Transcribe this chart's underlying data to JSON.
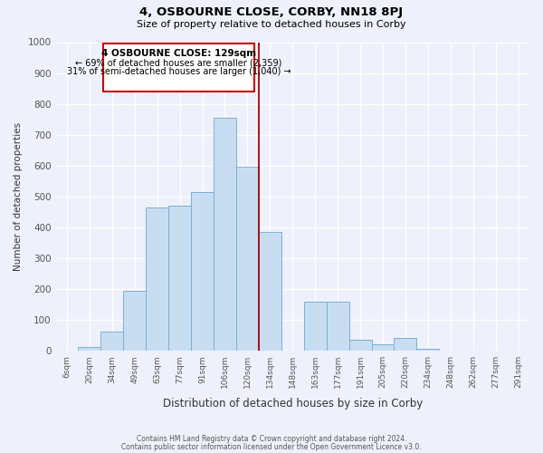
{
  "title_main": "4, OSBOURNE CLOSE, CORBY, NN18 8PJ",
  "title_sub": "Size of property relative to detached houses in Corby",
  "xlabel": "Distribution of detached houses by size in Corby",
  "ylabel": "Number of detached properties",
  "bin_labels": [
    "6sqm",
    "20sqm",
    "34sqm",
    "49sqm",
    "63sqm",
    "77sqm",
    "91sqm",
    "106sqm",
    "120sqm",
    "134sqm",
    "148sqm",
    "163sqm",
    "177sqm",
    "191sqm",
    "205sqm",
    "220sqm",
    "234sqm",
    "248sqm",
    "262sqm",
    "277sqm",
    "291sqm"
  ],
  "bar_values": [
    0,
    12,
    62,
    195,
    465,
    470,
    515,
    755,
    595,
    385,
    0,
    160,
    160,
    35,
    22,
    42,
    5,
    0,
    0,
    0,
    0
  ],
  "bar_color": "#c8ddf2",
  "bar_edge_color": "#7ab0d8",
  "annotation_box_title": "4 OSBOURNE CLOSE: 129sqm",
  "annotation_line1": "← 69% of detached houses are smaller (2,359)",
  "annotation_line2": "31% of semi-detached houses are larger (1,040) →",
  "box_edge_color": "#cc0000",
  "vline_color": "#aa0000",
  "ylim": [
    0,
    1000
  ],
  "yticks": [
    0,
    100,
    200,
    300,
    400,
    500,
    600,
    700,
    800,
    900,
    1000
  ],
  "footer1": "Contains HM Land Registry data © Crown copyright and database right 2024.",
  "footer2": "Contains public sector information licensed under the Open Government Licence v3.0.",
  "bg_color": "#eef1fb",
  "grid_color": "#ffffff",
  "tick_color": "#555555"
}
